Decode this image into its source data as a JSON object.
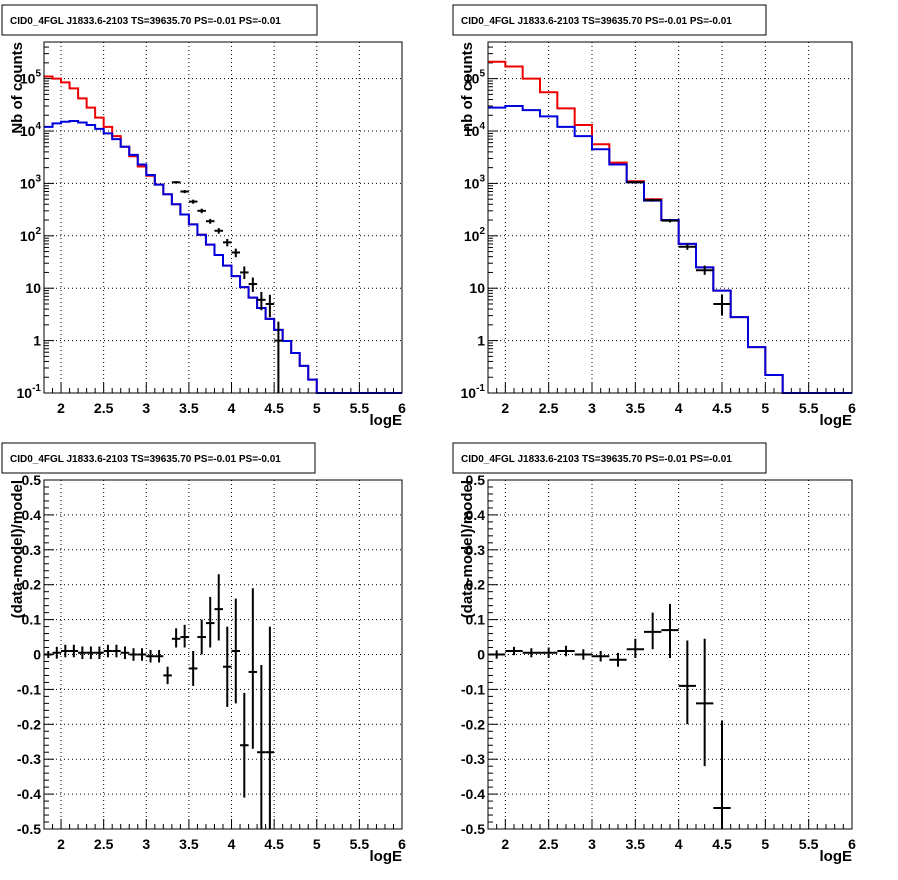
{
  "colors": {
    "series_a": "#ee0000",
    "series_b": "#0000dd",
    "data_points": "#000000",
    "grid": "#000000",
    "frame": "#000000"
  },
  "chart_data": [
    {
      "type": "line",
      "title": "CID0_4FGL J1833.6-2103 TS=39635.70 PS=-0.01 PS=-0.01",
      "xlabel": "logE",
      "ylabel": "Nb of counts",
      "scale_y": "log",
      "xlim": [
        1.8,
        6.0
      ],
      "ylim": [
        0.1,
        500000
      ],
      "grid": true,
      "x_ticks": [
        "2",
        "2.5",
        "3",
        "3.5",
        "4",
        "4.5",
        "5",
        "5.5",
        "6"
      ],
      "y_ticks": [
        "10^-1",
        "1",
        "10",
        "10^2",
        "10^3",
        "10^4",
        "10^5"
      ],
      "bin_edges": [
        1.8,
        1.9,
        2.0,
        2.1,
        2.2,
        2.3,
        2.4,
        2.5,
        2.6,
        2.7,
        2.8,
        2.9,
        3.0,
        3.1,
        3.2,
        3.3,
        3.4,
        3.5,
        3.6,
        3.7,
        3.8,
        3.9,
        4.0,
        4.1,
        4.2,
        4.3,
        4.4,
        4.5,
        4.6,
        4.7,
        4.8,
        4.9,
        5.0,
        5.1,
        5.2,
        5.3,
        5.4,
        5.5,
        5.6,
        5.7,
        5.8,
        5.9,
        6.0
      ],
      "series": [
        {
          "color": "red",
          "values": [
            110000,
            100000,
            85000,
            65000,
            42000,
            28000,
            18000,
            12000,
            8000,
            5000,
            3300,
            2100,
            1400,
            950,
            620,
            400,
            255,
            165,
            105,
            68,
            43,
            27,
            17,
            10.5,
            6.6,
            4.2,
            2.6,
            1.6,
            0.98,
            0.58,
            0.33,
            0.18,
            0.095,
            0.095,
            0.095,
            0.095,
            0.095,
            0.095,
            0.095,
            0.095,
            0.095,
            0.095
          ]
        },
        {
          "color": "blue",
          "values": [
            12000,
            14000,
            15000,
            15500,
            14500,
            13000,
            11000,
            9000,
            7000,
            5000,
            3500,
            2300,
            1450,
            950,
            620,
            400,
            255,
            165,
            105,
            68,
            43,
            27,
            17,
            10.5,
            6.6,
            4.2,
            2.6,
            1.6,
            0.98,
            0.58,
            0.33,
            0.18,
            0.095,
            0.095,
            0.095,
            0.095,
            0.095,
            0.095,
            0.095,
            0.095,
            0.095,
            0.095
          ]
        }
      ],
      "points": [
        {
          "x": 3.35,
          "y": 1050,
          "xerr": 0.05,
          "ylo": 990,
          "yhi": 1110
        },
        {
          "x": 3.45,
          "y": 700,
          "xerr": 0.05,
          "ylo": 650,
          "yhi": 750
        },
        {
          "x": 3.55,
          "y": 450,
          "xerr": 0.05,
          "ylo": 410,
          "yhi": 490
        },
        {
          "x": 3.65,
          "y": 300,
          "xerr": 0.05,
          "ylo": 270,
          "yhi": 330
        },
        {
          "x": 3.75,
          "y": 190,
          "xerr": 0.05,
          "ylo": 170,
          "yhi": 210
        },
        {
          "x": 3.85,
          "y": 125,
          "xerr": 0.05,
          "ylo": 110,
          "yhi": 140
        },
        {
          "x": 3.95,
          "y": 75,
          "xerr": 0.05,
          "ylo": 63,
          "yhi": 87
        },
        {
          "x": 4.05,
          "y": 48,
          "xerr": 0.05,
          "ylo": 39,
          "yhi": 57
        },
        {
          "x": 4.15,
          "y": 20,
          "xerr": 0.05,
          "ylo": 15,
          "yhi": 26
        },
        {
          "x": 4.25,
          "y": 12,
          "xerr": 0.05,
          "ylo": 8.5,
          "yhi": 16
        },
        {
          "x": 4.35,
          "y": 6,
          "xerr": 0.05,
          "ylo": 3.8,
          "yhi": 8.5
        },
        {
          "x": 4.45,
          "y": 5,
          "xerr": 0.05,
          "ylo": 2.8,
          "yhi": 7.5
        },
        {
          "x": 4.55,
          "y": 1,
          "xerr": 0.05,
          "ylo": 0.1,
          "yhi": 2.3
        }
      ]
    },
    {
      "type": "line",
      "title": "CID0_4FGL J1833.6-2103 TS=39635.70 PS=-0.01 PS=-0.01",
      "xlabel": "logE",
      "ylabel": "nb of counts",
      "scale_y": "log",
      "xlim": [
        1.8,
        6.0
      ],
      "ylim": [
        0.1,
        500000
      ],
      "grid": true,
      "x_ticks": [
        "2",
        "2.5",
        "3",
        "3.5",
        "4",
        "4.5",
        "5",
        "5.5",
        "6"
      ],
      "y_ticks": [
        "10^-1",
        "1",
        "10",
        "10^2",
        "10^3",
        "10^4",
        "10^5"
      ],
      "bin_edges": [
        1.8,
        2.0,
        2.2,
        2.4,
        2.6,
        2.8,
        3.0,
        3.2,
        3.4,
        3.6,
        3.8,
        4.0,
        4.2,
        4.4,
        4.6,
        4.8,
        5.0,
        5.2,
        5.4,
        5.6,
        5.8,
        6.0
      ],
      "series": [
        {
          "color": "red",
          "values": [
            210000,
            170000,
            100000,
            55000,
            27000,
            13000,
            5600,
            2500,
            1100,
            500,
            200,
            70,
            25,
            9,
            2.8,
            0.75,
            0.22,
            0.095,
            0.095,
            0.095,
            0.095
          ]
        },
        {
          "color": "blue",
          "values": [
            28000,
            30000,
            25000,
            19000,
            12000,
            8000,
            4500,
            2300,
            1050,
            470,
            200,
            70,
            25,
            9,
            2.8,
            0.75,
            0.22,
            0.095,
            0.095,
            0.095,
            0.095
          ]
        }
      ],
      "points": [
        {
          "x": 3.5,
          "y": 1050,
          "xerr": 0.1,
          "ylo": 990,
          "yhi": 1110
        },
        {
          "x": 3.7,
          "y": 480,
          "xerr": 0.1,
          "ylo": 450,
          "yhi": 510
        },
        {
          "x": 3.9,
          "y": 195,
          "xerr": 0.1,
          "ylo": 180,
          "yhi": 210
        },
        {
          "x": 4.1,
          "y": 62,
          "xerr": 0.1,
          "ylo": 54,
          "yhi": 70
        },
        {
          "x": 4.3,
          "y": 22,
          "xerr": 0.1,
          "ylo": 18,
          "yhi": 27
        },
        {
          "x": 4.5,
          "y": 5,
          "xerr": 0.1,
          "ylo": 3,
          "yhi": 7.5
        }
      ]
    },
    {
      "type": "scatter",
      "title": "CID0_4FGL J1833.6-2103 TS=39635.70 PS=-0.01 PS=-0.01",
      "xlabel": "logE",
      "ylabel": "(data-model)/model",
      "scale_y": "linear",
      "xlim": [
        1.8,
        6.0
      ],
      "ylim": [
        -0.5,
        0.5
      ],
      "grid": true,
      "x_ticks": [
        "2",
        "2.5",
        "3",
        "3.5",
        "4",
        "4.5",
        "5",
        "5.5",
        "6"
      ],
      "y_ticks": [
        "-0.5",
        "-0.4",
        "-0.3",
        "-0.2",
        "-0.1",
        "0",
        "0.1",
        "0.2",
        "0.3",
        "0.4",
        "0.5"
      ],
      "points": [
        {
          "x": 1.85,
          "y": 0.0,
          "xerr": 0.05,
          "ylo": -0.01,
          "yhi": 0.01
        },
        {
          "x": 1.95,
          "y": 0.005,
          "xerr": 0.05,
          "ylo": -0.012,
          "yhi": 0.022
        },
        {
          "x": 2.05,
          "y": 0.01,
          "xerr": 0.05,
          "ylo": -0.008,
          "yhi": 0.028
        },
        {
          "x": 2.15,
          "y": 0.01,
          "xerr": 0.05,
          "ylo": -0.008,
          "yhi": 0.028
        },
        {
          "x": 2.25,
          "y": 0.005,
          "xerr": 0.05,
          "ylo": -0.013,
          "yhi": 0.023
        },
        {
          "x": 2.35,
          "y": 0.005,
          "xerr": 0.05,
          "ylo": -0.013,
          "yhi": 0.023
        },
        {
          "x": 2.45,
          "y": 0.005,
          "xerr": 0.05,
          "ylo": -0.013,
          "yhi": 0.023
        },
        {
          "x": 2.55,
          "y": 0.01,
          "xerr": 0.05,
          "ylo": -0.008,
          "yhi": 0.028
        },
        {
          "x": 2.65,
          "y": 0.01,
          "xerr": 0.05,
          "ylo": -0.008,
          "yhi": 0.028
        },
        {
          "x": 2.75,
          "y": 0.005,
          "xerr": 0.05,
          "ylo": -0.013,
          "yhi": 0.023
        },
        {
          "x": 2.85,
          "y": 0.0,
          "xerr": 0.05,
          "ylo": -0.018,
          "yhi": 0.018
        },
        {
          "x": 2.95,
          "y": 0.0,
          "xerr": 0.05,
          "ylo": -0.018,
          "yhi": 0.018
        },
        {
          "x": 3.05,
          "y": -0.005,
          "xerr": 0.05,
          "ylo": -0.023,
          "yhi": 0.013
        },
        {
          "x": 3.15,
          "y": -0.005,
          "xerr": 0.05,
          "ylo": -0.023,
          "yhi": 0.013
        },
        {
          "x": 3.25,
          "y": -0.06,
          "xerr": 0.05,
          "ylo": -0.085,
          "yhi": -0.035
        },
        {
          "x": 3.35,
          "y": 0.045,
          "xerr": 0.05,
          "ylo": 0.02,
          "yhi": 0.075
        },
        {
          "x": 3.45,
          "y": 0.05,
          "xerr": 0.05,
          "ylo": 0.02,
          "yhi": 0.085
        },
        {
          "x": 3.55,
          "y": -0.04,
          "xerr": 0.05,
          "ylo": -0.09,
          "yhi": 0.01
        },
        {
          "x": 3.65,
          "y": 0.05,
          "xerr": 0.05,
          "ylo": 0.0,
          "yhi": 0.1
        },
        {
          "x": 3.75,
          "y": 0.09,
          "xerr": 0.05,
          "ylo": 0.02,
          "yhi": 0.165
        },
        {
          "x": 3.85,
          "y": 0.13,
          "xerr": 0.05,
          "ylo": 0.04,
          "yhi": 0.23
        },
        {
          "x": 3.95,
          "y": -0.035,
          "xerr": 0.05,
          "ylo": -0.15,
          "yhi": 0.08
        },
        {
          "x": 4.05,
          "y": 0.01,
          "xerr": 0.05,
          "ylo": -0.14,
          "yhi": 0.16
        },
        {
          "x": 4.15,
          "y": -0.26,
          "xerr": 0.05,
          "ylo": -0.41,
          "yhi": -0.11
        },
        {
          "x": 4.25,
          "y": -0.05,
          "xerr": 0.05,
          "ylo": -0.27,
          "yhi": 0.19
        },
        {
          "x": 4.35,
          "y": -0.28,
          "xerr": 0.05,
          "ylo": -0.5,
          "yhi": -0.03
        },
        {
          "x": 4.45,
          "y": -0.28,
          "xerr": 0.05,
          "ylo": -0.5,
          "yhi": 0.08
        }
      ]
    },
    {
      "type": "scatter",
      "title": "CID0_4FGL J1833.6-2103 TS=39635.70 PS=-0.01 PS=-0.01",
      "xlabel": "logE",
      "ylabel": "(data-model)/model",
      "scale_y": "linear",
      "xlim": [
        1.8,
        6.0
      ],
      "ylim": [
        -0.5,
        0.5
      ],
      "grid": true,
      "x_ticks": [
        "2",
        "2.5",
        "3",
        "3.5",
        "4",
        "4.5",
        "5",
        "5.5",
        "6"
      ],
      "y_ticks": [
        "-0.5",
        "-0.4",
        "-0.3",
        "-0.2",
        "-0.1",
        "0",
        "0.1",
        "0.2",
        "0.3",
        "0.4",
        "0.5"
      ],
      "points": [
        {
          "x": 1.9,
          "y": 0.0,
          "xerr": 0.1,
          "ylo": -0.012,
          "yhi": 0.012
        },
        {
          "x": 2.1,
          "y": 0.01,
          "xerr": 0.1,
          "ylo": -0.002,
          "yhi": 0.022
        },
        {
          "x": 2.3,
          "y": 0.005,
          "xerr": 0.1,
          "ylo": -0.008,
          "yhi": 0.018
        },
        {
          "x": 2.5,
          "y": 0.005,
          "xerr": 0.1,
          "ylo": -0.01,
          "yhi": 0.02
        },
        {
          "x": 2.7,
          "y": 0.01,
          "xerr": 0.1,
          "ylo": -0.005,
          "yhi": 0.025
        },
        {
          "x": 2.9,
          "y": 0.0,
          "xerr": 0.1,
          "ylo": -0.015,
          "yhi": 0.015
        },
        {
          "x": 3.1,
          "y": -0.005,
          "xerr": 0.1,
          "ylo": -0.02,
          "yhi": 0.01
        },
        {
          "x": 3.3,
          "y": -0.015,
          "xerr": 0.1,
          "ylo": -0.035,
          "yhi": 0.005
        },
        {
          "x": 3.5,
          "y": 0.015,
          "xerr": 0.1,
          "ylo": -0.01,
          "yhi": 0.045
        },
        {
          "x": 3.7,
          "y": 0.065,
          "xerr": 0.1,
          "ylo": 0.015,
          "yhi": 0.12
        },
        {
          "x": 3.9,
          "y": 0.07,
          "xerr": 0.1,
          "ylo": -0.01,
          "yhi": 0.145
        },
        {
          "x": 4.1,
          "y": -0.09,
          "xerr": 0.1,
          "ylo": -0.2,
          "yhi": 0.04
        },
        {
          "x": 4.3,
          "y": -0.14,
          "xerr": 0.1,
          "ylo": -0.32,
          "yhi": 0.045
        },
        {
          "x": 4.5,
          "y": -0.44,
          "xerr": 0.1,
          "ylo": -0.5,
          "yhi": -0.19
        }
      ]
    }
  ]
}
